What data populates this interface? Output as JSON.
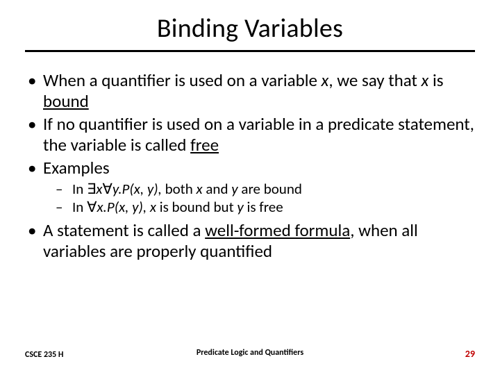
{
  "colors": {
    "text": "#000000",
    "background": "#ffffff",
    "rule": "#000000",
    "page_number": "#c00000"
  },
  "typography": {
    "title_fontsize": 38,
    "body_fontsize": 25,
    "sub_fontsize": 21,
    "footer_fontsize": 12,
    "page_number_fontsize": 14,
    "font_family": "Calibri"
  },
  "title": "Binding Variables",
  "bullets": {
    "b1_pre": "When a quantifier is used on a variable ",
    "b1_var1": "x",
    "b1_mid": ", we say that ",
    "b1_var2": "x",
    "b1_post": " is ",
    "b1_term": "bound",
    "b2_pre": "If no quantifier is used on a variable in a predicate statement, the variable is called ",
    "b2_term": "free",
    "b3": "Examples",
    "s1_pre": "In ",
    "s1_sym": "∃",
    "s1_x": "x",
    "s1_sym2": "∀",
    "s1_y": "y.P",
    "s1_args": "(x, y), ",
    "s1_mid": "both ",
    "s1_xv": "x",
    "s1_and": " and ",
    "s1_yv": "y",
    "s1_end": " are bound",
    "s2_pre": "In ",
    "s2_sym": "∀",
    "s2_x": "x.P",
    "s2_args": "(x, y), ",
    "s2_xv": "x",
    "s2_mid": " is bound but ",
    "s2_yv": "y",
    "s2_end": " is free",
    "b4_pre": "A statement is called a ",
    "b4_term": "well-formed formula",
    "b4_post": ", when all variables are properly quantified"
  },
  "footer": {
    "left": "CSCE 235 H",
    "center": "Predicate Logic and Quantifiers",
    "page": "29"
  }
}
